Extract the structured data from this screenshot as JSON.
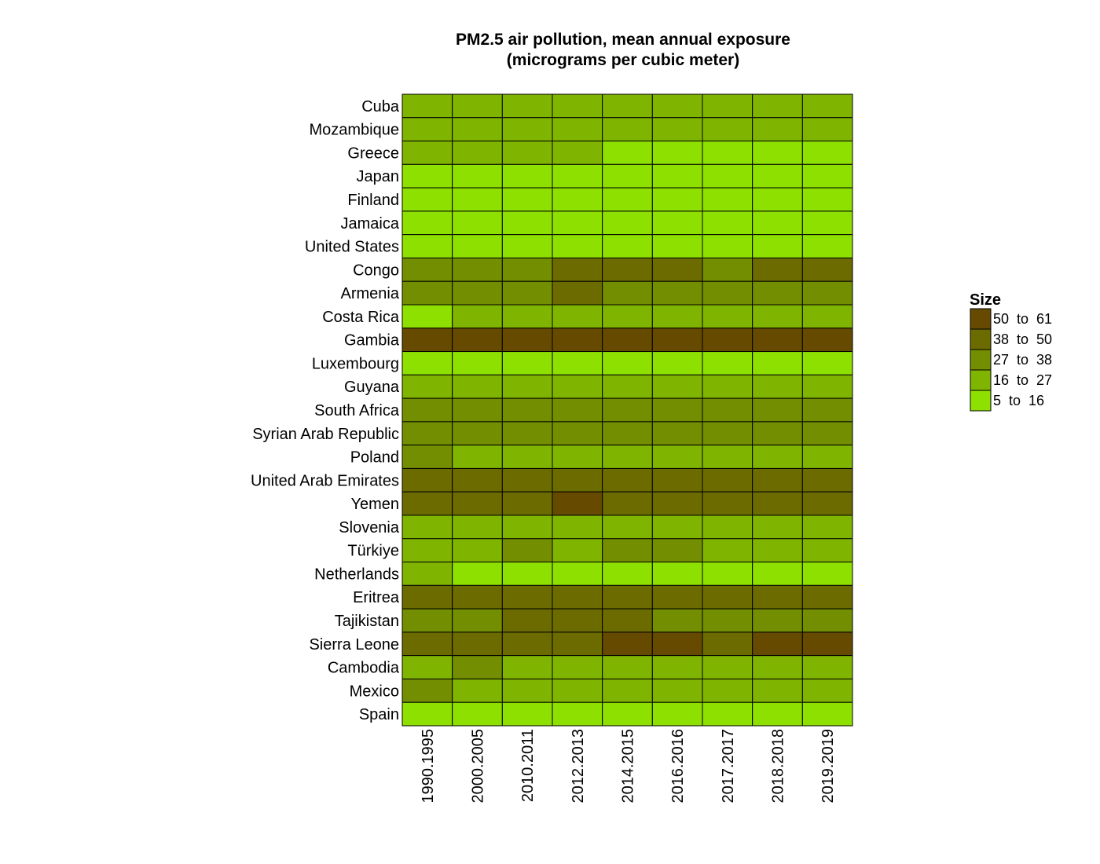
{
  "chart_data": {
    "type": "heatmap",
    "title": "PM2.5 air pollution, mean annual exposure",
    "subtitle": "(micrograms per cubic meter)",
    "xlabel": "",
    "ylabel": "",
    "grid": false,
    "legend_position": "right",
    "columns": [
      "1990.1995",
      "2000.2005",
      "2010.2011",
      "2012.2013",
      "2014.2015",
      "2016.2016",
      "2017.2017",
      "2018.2018",
      "2019.2019"
    ],
    "rows": [
      "Cuba",
      "Mozambique",
      "Greece",
      "Japan",
      "Finland",
      "Jamaica",
      "United States",
      "Congo",
      "Armenia",
      "Costa Rica",
      "Gambia",
      "Luxembourg",
      "Guyana",
      "South Africa",
      "Syrian Arab Republic",
      "Poland",
      "United Arab Emirates",
      "Yemen",
      "Slovenia",
      "Türkiye",
      "Netherlands",
      "Eritrea",
      "Tajikistan",
      "Sierra Leone",
      "Cambodia",
      "Mexico",
      "Spain"
    ],
    "legend": {
      "title": "Size",
      "bins": [
        {
          "label": "50  to  61",
          "min": 50,
          "max": 61,
          "color": "#654a00"
        },
        {
          "label": "38  to  50",
          "min": 38,
          "max": 50,
          "color": "#6b6b00"
        },
        {
          "label": "27  to  38",
          "min": 27,
          "max": 38,
          "color": "#738e00"
        },
        {
          "label": "16  to  27",
          "min": 16,
          "max": 27,
          "color": "#7fb500"
        },
        {
          "label": "5  to  16",
          "min": 5,
          "max": 16,
          "color": "#8ee000"
        }
      ]
    },
    "values": [
      [
        20,
        20,
        20,
        20,
        20,
        20,
        20,
        20,
        20
      ],
      [
        20,
        20,
        20,
        20,
        20,
        20,
        20,
        20,
        20
      ],
      [
        20,
        20,
        20,
        20,
        12,
        12,
        12,
        12,
        12
      ],
      [
        12,
        12,
        12,
        12,
        12,
        12,
        12,
        12,
        12
      ],
      [
        8,
        8,
        8,
        8,
        8,
        8,
        8,
        8,
        8
      ],
      [
        14,
        14,
        14,
        14,
        14,
        14,
        14,
        14,
        14
      ],
      [
        9,
        9,
        9,
        9,
        9,
        9,
        9,
        9,
        9
      ],
      [
        33,
        33,
        34,
        42,
        41,
        42,
        36,
        40,
        42
      ],
      [
        33,
        33,
        33,
        40,
        33,
        33,
        33,
        32,
        33
      ],
      [
        14,
        20,
        20,
        20,
        20,
        20,
        20,
        20,
        20
      ],
      [
        57,
        57,
        57,
        57,
        57,
        57,
        57,
        57,
        57
      ],
      [
        12,
        12,
        12,
        12,
        12,
        12,
        12,
        12,
        12
      ],
      [
        20,
        20,
        20,
        20,
        20,
        20,
        20,
        20,
        20
      ],
      [
        28,
        28,
        28,
        28,
        28,
        28,
        28,
        28,
        28
      ],
      [
        33,
        33,
        33,
        33,
        33,
        33,
        33,
        33,
        33
      ],
      [
        28,
        25,
        25,
        25,
        25,
        25,
        25,
        25,
        25
      ],
      [
        42,
        42,
        42,
        40,
        42,
        42,
        42,
        42,
        42
      ],
      [
        42,
        42,
        42,
        53,
        42,
        42,
        42,
        42,
        42
      ],
      [
        22,
        22,
        22,
        22,
        22,
        22,
        22,
        22,
        22
      ],
      [
        22,
        22,
        28,
        22,
        28,
        28,
        22,
        22,
        22
      ],
      [
        20,
        14,
        14,
        14,
        14,
        14,
        14,
        14,
        14
      ],
      [
        42,
        42,
        42,
        42,
        42,
        42,
        42,
        42,
        42
      ],
      [
        34,
        34,
        40,
        40,
        40,
        34,
        34,
        33,
        33
      ],
      [
        42,
        42,
        42,
        40,
        53,
        53,
        40,
        55,
        55
      ],
      [
        22,
        28,
        22,
        22,
        22,
        22,
        22,
        22,
        22
      ],
      [
        28,
        22,
        22,
        22,
        22,
        22,
        22,
        22,
        22
      ],
      [
        12,
        12,
        12,
        12,
        12,
        12,
        12,
        12,
        12
      ]
    ]
  }
}
